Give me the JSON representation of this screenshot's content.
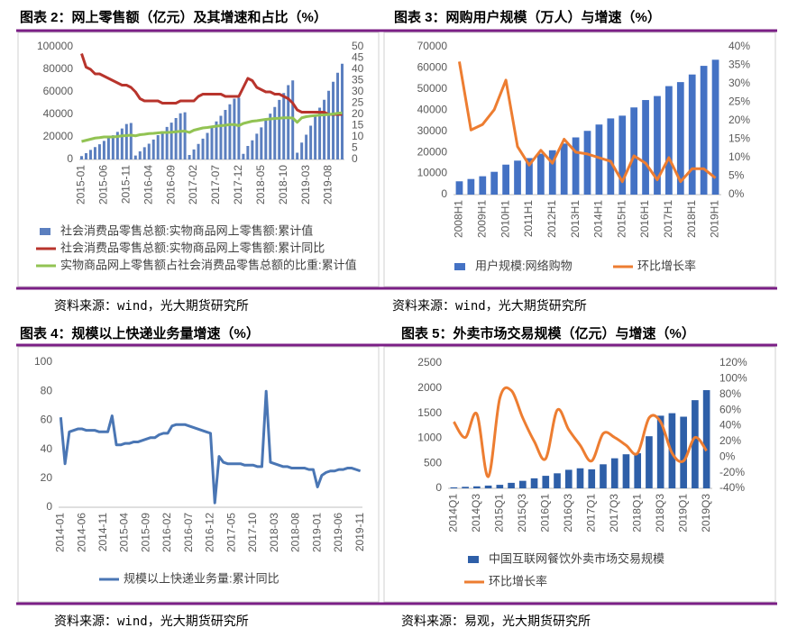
{
  "chart_data": [
    {
      "type": "combo",
      "title": "图表 2：网上零售额（亿元）及其增速和占比（%）",
      "source": "资料来源：wind，光大期货研究所",
      "grid": false,
      "legend": "bottom",
      "categories": [
        "2015-01",
        null,
        null,
        null,
        null,
        "2015-06",
        null,
        null,
        null,
        null,
        "2015-11",
        null,
        null,
        null,
        null,
        "2016-04",
        null,
        null,
        null,
        null,
        "2016-09",
        null,
        null,
        null,
        null,
        "2017-02",
        null,
        null,
        null,
        null,
        "2017-07",
        null,
        null,
        null,
        null,
        "2017-12",
        null,
        null,
        null,
        null,
        "2018-05",
        null,
        null,
        null,
        null,
        "2018-10",
        null,
        null,
        null,
        null,
        "2019-03",
        null,
        null,
        null,
        null,
        "2019-08",
        null,
        null,
        null
      ],
      "ylim": [
        0,
        100000
      ],
      "yticks": [
        0,
        20000,
        40000,
        60000,
        80000,
        100000
      ],
      "y2lim": [
        0,
        50
      ],
      "y2ticks": [
        0,
        5,
        10,
        15,
        20,
        25,
        30,
        35,
        40,
        45,
        50
      ],
      "series": [
        {
          "name": "社会消费品零售总额:实物商品网上零售额:累计值",
          "type": "bar",
          "color": "#5b7fbf",
          "values": [
            3000,
            5600,
            8500,
            11000,
            13500,
            16500,
            19000,
            21500,
            24500,
            27500,
            31500,
            32400,
            3500,
            7200,
            10900,
            14000,
            17700,
            21600,
            25200,
            28900,
            32700,
            36800,
            41000,
            41900,
            4000,
            8900,
            13800,
            18500,
            23600,
            29000,
            33800,
            38800,
            44000,
            49000,
            54000,
            54800,
            5000,
            12000,
            17000,
            22900,
            28500,
            35000,
            40700,
            46600,
            52900,
            59000,
            66000,
            70200,
            6000,
            15000,
            22000,
            30000,
            38000,
            46000,
            53000,
            61000,
            69000,
            77000,
            85000
          ]
        },
        {
          "name": "社会消费品零售总额:实物商品网上零售额:累计同比",
          "type": "line",
          "axis": "y2",
          "color": "#b8342c",
          "values": [
            47,
            41,
            40,
            38,
            38,
            37,
            36,
            35,
            34,
            33,
            33,
            32,
            30,
            27,
            26,
            26,
            26,
            26,
            25,
            25,
            25,
            25,
            26,
            26,
            26,
            26,
            28,
            29,
            29,
            29,
            29,
            29,
            28,
            28,
            28,
            28,
            32,
            36,
            35,
            32,
            31,
            30,
            30,
            29,
            29,
            28,
            27,
            25,
            22,
            21,
            21,
            21,
            21,
            21,
            21,
            20,
            20,
            20,
            20
          ]
        },
        {
          "name": "实物商品网上零售额占社会消费品零售总额的比重:累计值",
          "type": "line",
          "axis": "y2",
          "color": "#92c353",
          "values": [
            8,
            8.5,
            9,
            9.5,
            9.7,
            10,
            10,
            10,
            10.2,
            10.5,
            10.6,
            10.8,
            10.5,
            11,
            11.2,
            11.5,
            11.6,
            11.8,
            12,
            12,
            12.1,
            12.3,
            12.5,
            12.6,
            12,
            13,
            13.5,
            14,
            14.2,
            14.5,
            14.8,
            15,
            15.2,
            15.5,
            15.5,
            15,
            16,
            16.5,
            17,
            17.2,
            17.5,
            17.8,
            18,
            18.2,
            18.3,
            18.5,
            18.5,
            18.4,
            16.5,
            18.5,
            19,
            19.3,
            19.5,
            19.7,
            19.8,
            20,
            20.2,
            20.5,
            20.7
          ]
        }
      ]
    },
    {
      "type": "combo",
      "title": "图表 3：网购用户规模（万人）与增速（%）",
      "source": "资料来源：wind，光大期货研究所",
      "grid": false,
      "legend": "bottom",
      "categories": [
        "2008H1",
        null,
        "2009H1",
        null,
        "2010H1",
        null,
        "2011H1",
        null,
        "2012H1",
        null,
        "2013H1",
        null,
        "2014H1",
        null,
        "2015H1",
        null,
        "2016H1",
        null,
        "2017H1",
        null,
        "2018H1",
        null,
        "2019H1"
      ],
      "ylim": [
        0,
        70000
      ],
      "yticks": [
        0,
        10000,
        20000,
        30000,
        40000,
        50000,
        60000,
        70000
      ],
      "y2lim": [
        0,
        40
      ],
      "y2ticks": [
        {
          "value": 0,
          "label": "0%"
        },
        {
          "value": 5,
          "label": "5%"
        },
        {
          "value": 10,
          "label": "10%"
        },
        {
          "value": 15,
          "label": "15%"
        },
        {
          "value": 20,
          "label": "20%"
        },
        {
          "value": 25,
          "label": "25%"
        },
        {
          "value": 30,
          "label": "30%"
        },
        {
          "value": 35,
          "label": "35%"
        },
        {
          "value": 40,
          "label": "40%"
        }
      ],
      "series": [
        {
          "name": "用户规模:网络购物",
          "type": "bar",
          "color": "#4472c4",
          "values": [
            6300,
            7400,
            8700,
            10800,
            14200,
            16100,
            17300,
            19400,
            21000,
            24200,
            27100,
            30200,
            33200,
            36100,
            37400,
            41300,
            44800,
            46700,
            51400,
            53300,
            56900,
            61000,
            63900
          ]
        },
        {
          "name": "环比增长率",
          "type": "line",
          "axis": "y2",
          "color": "#ed7d31",
          "values": [
            36,
            17.5,
            19,
            23,
            31,
            13,
            8,
            12,
            8.5,
            15,
            11.5,
            11,
            10,
            9,
            3.5,
            10.5,
            8.5,
            4,
            10,
            3.5,
            7,
            7,
            4.5
          ]
        }
      ]
    },
    {
      "type": "line",
      "title": "图表 4：规模以上快递业务量增速（%）",
      "source": "资料来源：wind，光大期货研究所",
      "grid": false,
      "legend": "bottom",
      "categories": [
        "2014-01",
        null,
        null,
        null,
        null,
        "2014-06",
        null,
        null,
        null,
        null,
        "2014-11",
        null,
        null,
        null,
        null,
        "2015-04",
        null,
        null,
        null,
        null,
        "2015-09",
        null,
        null,
        null,
        null,
        "2016-02",
        null,
        null,
        null,
        null,
        "2016-07",
        null,
        null,
        null,
        null,
        "2016-12",
        null,
        null,
        null,
        null,
        "2017-05",
        null,
        null,
        null,
        null,
        "2017-10",
        null,
        null,
        null,
        null,
        "2018-03",
        null,
        null,
        null,
        null,
        "2018-08",
        null,
        null,
        null,
        null,
        "2019-01",
        null,
        null,
        null,
        null,
        "2019-06",
        null,
        null,
        null,
        null,
        "2019-11"
      ],
      "ylim": [
        0,
        100
      ],
      "yticks": [
        0,
        20,
        40,
        60,
        80,
        100
      ],
      "series": [
        {
          "name": "规模以上快递业务量:累计同比",
          "type": "line",
          "color": "#4a76b4",
          "values": [
            62,
            30,
            52,
            53,
            54,
            54,
            53,
            53,
            53,
            52,
            52,
            52,
            63,
            43,
            43,
            44,
            44,
            45,
            45,
            46,
            47,
            48,
            48,
            50,
            51,
            51,
            56,
            57,
            57,
            57,
            56,
            55,
            54,
            53,
            52,
            51,
            3,
            35,
            31,
            30,
            30,
            30,
            30,
            29,
            29,
            29,
            28,
            28,
            80,
            31,
            30,
            29,
            28,
            28,
            27,
            27,
            27,
            27,
            26,
            26,
            14,
            22,
            24,
            25,
            25,
            26,
            26,
            27,
            27,
            26,
            25
          ]
        }
      ]
    },
    {
      "type": "combo",
      "title": "图表 5：外卖市场交易规模（亿元）与增速（%）",
      "source": "资料来源：易观，光大期货研究所",
      "grid": false,
      "legend": "bottom",
      "categories": [
        "2014Q1",
        null,
        "2014Q3",
        null,
        "2015Q1",
        null,
        "2015Q3",
        null,
        "2016Q1",
        null,
        "2016Q3",
        null,
        "2017Q1",
        null,
        "2017Q3",
        null,
        "2018Q1",
        null,
        "2018Q3",
        null,
        "2019Q1",
        null,
        "2019Q3"
      ],
      "ylim": [
        0,
        2500
      ],
      "yticks": [
        0,
        500,
        1000,
        1500,
        2000,
        2500
      ],
      "y2lim": [
        -40,
        120
      ],
      "y2ticks": [
        {
          "value": -40,
          "label": "-40%"
        },
        {
          "value": -20,
          "label": "-20%"
        },
        {
          "value": 0,
          "label": "0%"
        },
        {
          "value": 20,
          "label": "20%"
        },
        {
          "value": 40,
          "label": "40%"
        },
        {
          "value": 60,
          "label": "60%"
        },
        {
          "value": 80,
          "label": "80%"
        },
        {
          "value": 100,
          "label": "100%"
        },
        {
          "value": 120,
          "label": "120%"
        }
      ],
      "series": [
        {
          "name": "中国互联网餐饮外卖市场交易规模",
          "type": "bar",
          "color": "#2e5fa8",
          "values": [
            20,
            30,
            40,
            55,
            70,
            110,
            150,
            200,
            250,
            300,
            370,
            400,
            380,
            480,
            600,
            680,
            700,
            1040,
            1450,
            1500,
            1430,
            1760,
            1960
          ]
        },
        {
          "name": "环比增长率",
          "type": "line",
          "axis": "y2",
          "smooth": true,
          "color": "#ed7d31",
          "values": [
            45,
            25,
            55,
            -25,
            75,
            85,
            50,
            20,
            -2,
            60,
            35,
            15,
            -5,
            30,
            25,
            15,
            5,
            50,
            45,
            5,
            -5,
            25,
            8
          ]
        }
      ]
    }
  ]
}
